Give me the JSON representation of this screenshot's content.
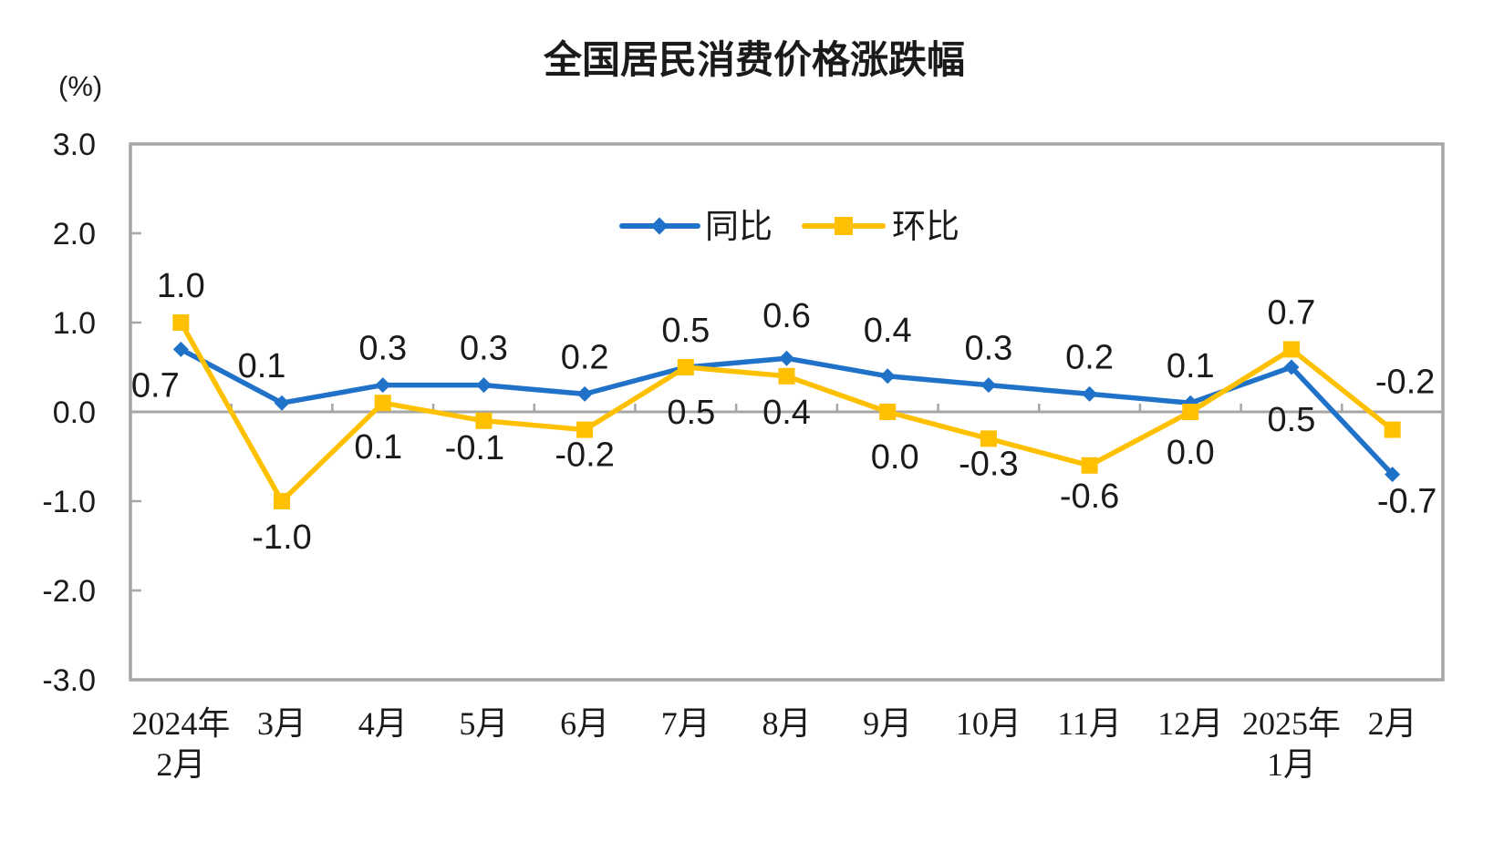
{
  "page": {
    "background": "#FFFFFF"
  },
  "chart_data": {
    "type": "line",
    "title": "全国居民消费价格涨跌幅",
    "unit_label": "(%)",
    "categories": [
      "2024年\n2月",
      "3月",
      "4月",
      "5月",
      "6月",
      "7月",
      "8月",
      "9月",
      "10月",
      "11月",
      "12月",
      "2025年\n1月",
      "2月"
    ],
    "series": [
      {
        "name": "同比",
        "color": "#1F72C8",
        "marker": "diamond",
        "values": [
          0.7,
          0.1,
          0.3,
          0.3,
          0.2,
          0.5,
          0.6,
          0.4,
          0.3,
          0.2,
          0.1,
          0.5,
          -0.7
        ],
        "labels": [
          "0.7",
          "0.1",
          "0.3",
          "0.3",
          "0.2",
          "0.5",
          "0.6",
          "0.4",
          "0.3",
          "0.2",
          "0.1",
          "0.5",
          "-0.7"
        ],
        "label_side": [
          "below",
          "above",
          "above",
          "above",
          "above",
          "above",
          "above",
          "above",
          "above",
          "above",
          "above",
          "below",
          "below"
        ],
        "label_dx": [
          -28,
          -22,
          0,
          0,
          0,
          0,
          0,
          0,
          0,
          0,
          0,
          0,
          16
        ],
        "label_dy": [
          0,
          0,
          0,
          0,
          0,
          0,
          -6,
          -10,
          0,
          0,
          0,
          18,
          -10
        ]
      },
      {
        "name": "环比",
        "color": "#FFC000",
        "marker": "square",
        "values": [
          1.0,
          -1.0,
          0.1,
          -0.1,
          -0.2,
          0.5,
          0.4,
          0.0,
          -0.3,
          -0.6,
          0.0,
          0.7,
          -0.2
        ],
        "labels": [
          "1.0",
          "-1.0",
          "0.1",
          "-0.1",
          "-0.2",
          "0.5",
          "0.4",
          "0.0",
          "-0.3",
          "-0.6",
          "0.0",
          "0.7",
          "-0.2"
        ],
        "label_side": [
          "above",
          "below",
          "below",
          "below",
          "below",
          "below",
          "below",
          "below",
          "below",
          "below",
          "below",
          "above",
          "above"
        ],
        "label_dx": [
          0,
          0,
          -5,
          -10,
          0,
          6,
          0,
          8,
          0,
          0,
          0,
          0,
          14
        ],
        "label_dy": [
          0,
          0,
          9,
          -10,
          -12,
          10,
          0,
          10,
          -12,
          -6,
          5,
          0,
          -12
        ]
      }
    ],
    "ylim": [
      -3,
      3
    ],
    "ytick_labels": [
      "3.0",
      "2.0",
      "1.0",
      "0.0",
      "-1.0",
      "-2.0",
      "-3.0"
    ],
    "ytick_values": [
      3,
      2,
      1,
      0,
      -1,
      -2,
      -3
    ],
    "grid": false,
    "legend_position": "inside-top-center",
    "axis_color": "#A6A6A6",
    "text_color": "#1A1A1A"
  }
}
